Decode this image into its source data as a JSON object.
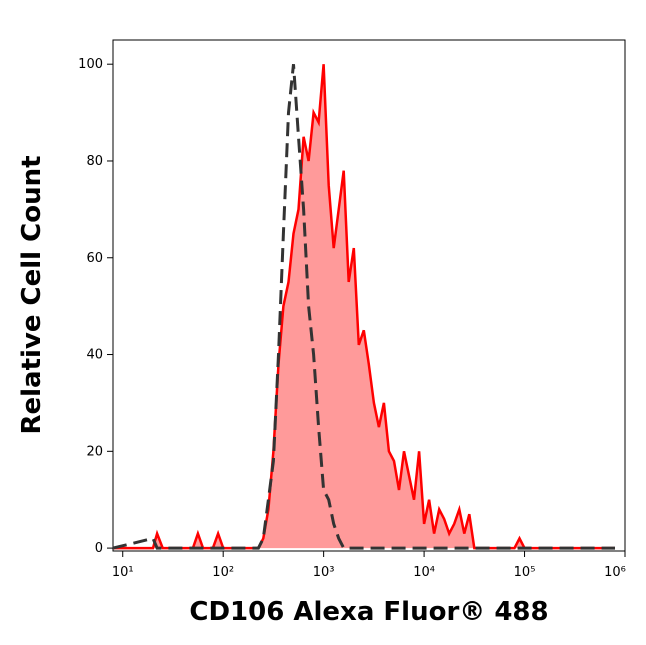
{
  "chart_data": {
    "type": "histogram-line",
    "xlabel": "CD106 Alexa Fluor® 488",
    "ylabel": "Relative Cell Count",
    "xscale": "log",
    "xlim": [
      8,
      1000000
    ],
    "xticks": [
      {
        "value": 10,
        "label": "10¹"
      },
      {
        "value": 100,
        "label": "10²"
      },
      {
        "value": 1000,
        "label": "10³"
      },
      {
        "value": 10000,
        "label": "10⁴"
      },
      {
        "value": 100000,
        "label": "10⁵"
      },
      {
        "value": 1000000,
        "label": "10⁶"
      }
    ],
    "ylim": [
      -0.6,
      105
    ],
    "yticks": [
      0,
      20,
      40,
      60,
      80,
      100
    ],
    "x": [
      8,
      20,
      22,
      25,
      50,
      56,
      63,
      79,
      89,
      100,
      158,
      200,
      224,
      251,
      282,
      316,
      355,
      398,
      447,
      501,
      562,
      631,
      708,
      794,
      891,
      1000,
      1122,
      1259,
      1413,
      1585,
      1778,
      1995,
      2239,
      2512,
      2818,
      3162,
      3548,
      3981,
      4467,
      5012,
      5623,
      6310,
      7079,
      7943,
      8913,
      10000,
      11220,
      12589,
      14125,
      15849,
      17783,
      19953,
      22387,
      25119,
      28184,
      31623,
      39811,
      79433,
      89125,
      100000,
      316228,
      794328
    ],
    "series": [
      {
        "color": "#ff0000",
        "fill": "#ff9a9a",
        "dashed": false,
        "values": [
          0,
          0,
          3,
          0,
          0,
          3,
          0,
          0,
          3,
          0,
          0,
          0,
          0,
          2,
          8,
          20,
          38,
          50,
          55,
          65,
          70,
          85,
          80,
          90,
          88,
          100,
          75,
          62,
          70,
          78,
          55,
          62,
          42,
          45,
          38,
          30,
          25,
          30,
          20,
          18,
          12,
          20,
          15,
          10,
          20,
          5,
          10,
          3,
          8,
          6,
          3,
          5,
          8,
          3,
          7,
          0,
          0,
          0,
          2,
          0,
          0,
          0
        ]
      },
      {
        "color": "#333333",
        "fill": null,
        "dashed": true,
        "values": [
          0,
          2,
          0,
          0,
          0,
          0,
          0,
          0,
          0,
          0,
          0,
          0,
          0,
          2,
          10,
          18,
          40,
          65,
          90,
          100,
          85,
          70,
          50,
          40,
          25,
          12,
          10,
          5,
          2,
          0,
          0,
          0,
          0,
          0,
          0,
          0,
          0,
          0,
          0,
          0,
          0,
          0,
          0,
          0,
          0,
          0,
          0,
          0,
          0,
          0,
          0,
          0,
          0,
          0,
          0,
          0,
          0,
          0,
          0,
          0,
          0,
          0
        ]
      }
    ]
  }
}
